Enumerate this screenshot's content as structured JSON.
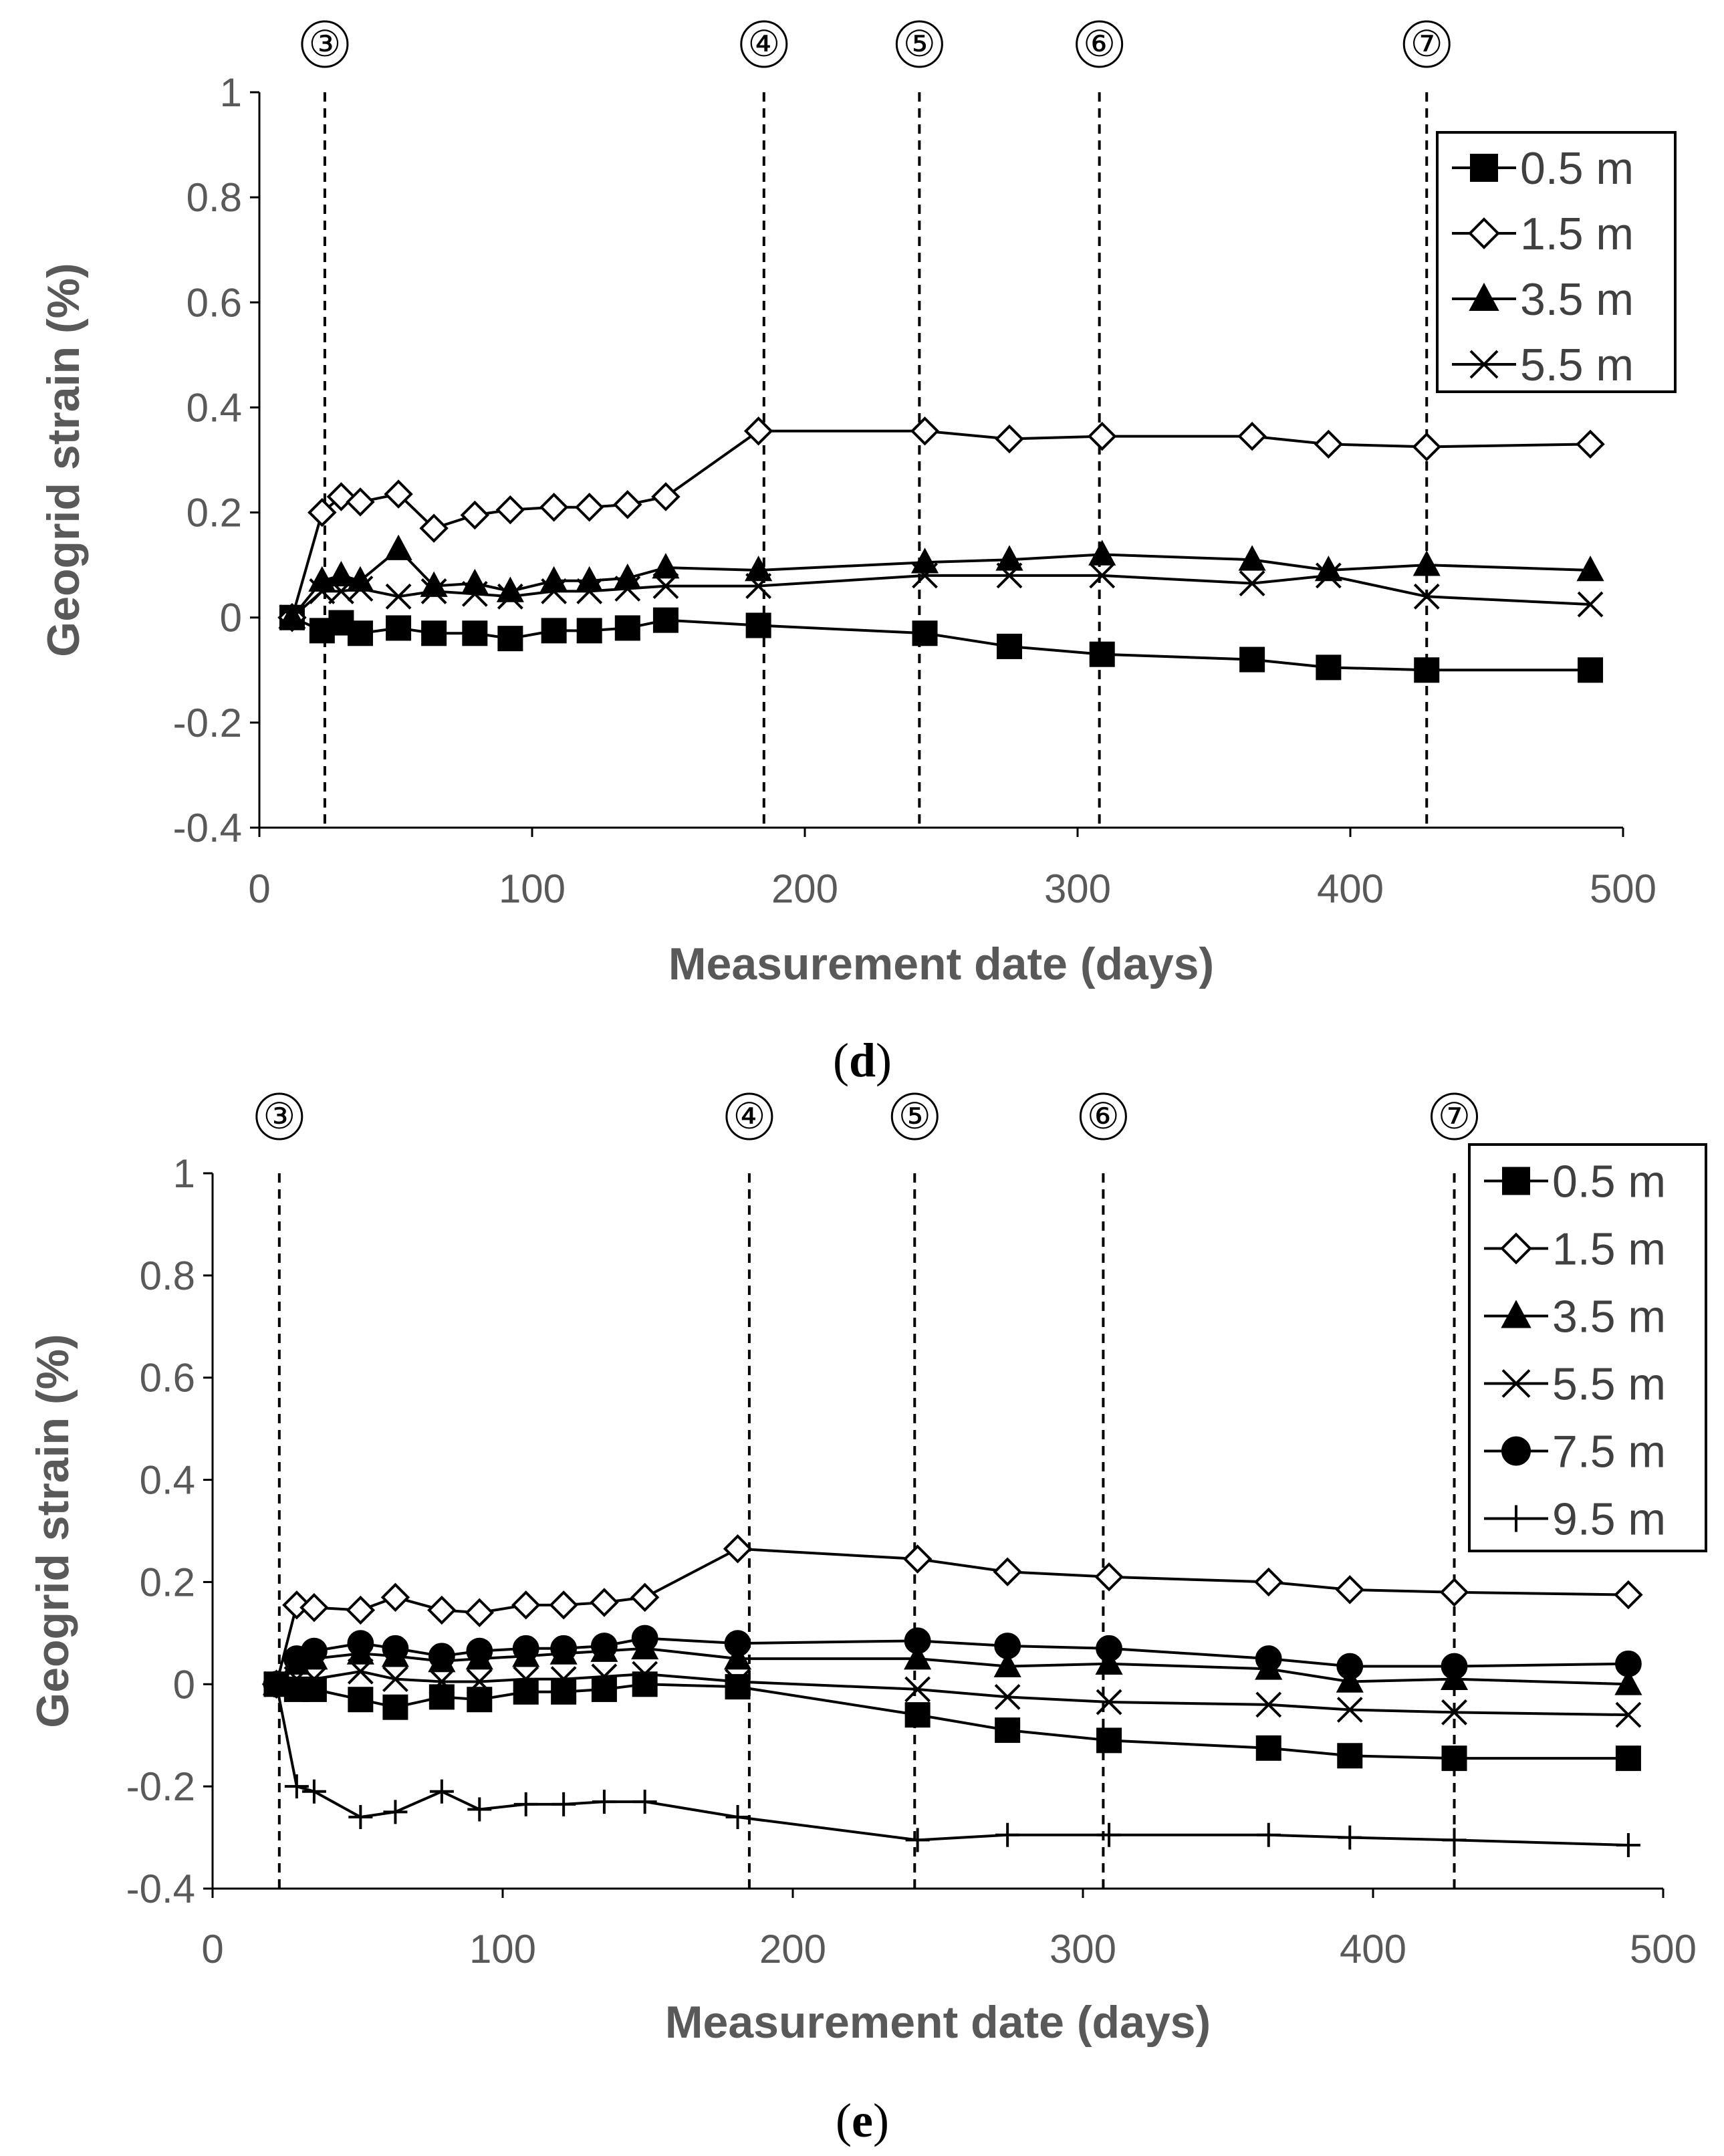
{
  "chart_data": [
    {
      "id": "d",
      "type": "line",
      "caption": {
        "open": "(",
        "letter": "d",
        "close": ")"
      },
      "xlabel": "Measurement date (days)",
      "ylabel": "Geogrid strain (%)",
      "xlim": [
        0,
        500
      ],
      "ylim": [
        -0.4,
        1
      ],
      "xticks": [
        "0",
        "100",
        "200",
        "300",
        "400",
        "500"
      ],
      "yticks": [
        "1",
        "0.8",
        "0.6",
        "0.4",
        "0.2",
        "0",
        "-0.2",
        "-0.4"
      ],
      "xtick_values": [
        0,
        100,
        200,
        300,
        400,
        500
      ],
      "ytick_values": [
        1,
        0.8,
        0.6,
        0.4,
        0.2,
        0,
        -0.2,
        -0.4
      ],
      "stages": [
        {
          "label": "③",
          "x": 24
        },
        {
          "label": "④",
          "x": 185
        },
        {
          "label": "⑤",
          "x": 242
        },
        {
          "label": "⑥",
          "x": 308
        },
        {
          "label": "⑦",
          "x": 428
        }
      ],
      "legend_position": "top-right",
      "series": [
        {
          "name": "0.5 m",
          "marker": "square",
          "x": [
            12,
            23,
            30,
            37,
            51,
            64,
            79,
            92,
            108,
            121,
            135,
            149,
            183,
            244,
            275,
            309,
            364,
            392,
            428,
            488
          ],
          "y": [
            0,
            -0.025,
            -0.01,
            -0.03,
            -0.02,
            -0.03,
            -0.03,
            -0.04,
            -0.025,
            -0.025,
            -0.02,
            -0.005,
            -0.015,
            -0.03,
            -0.055,
            -0.07,
            -0.08,
            -0.095,
            -0.1,
            -0.1
          ]
        },
        {
          "name": "1.5 m",
          "marker": "diamond",
          "x": [
            12,
            23,
            30,
            37,
            51,
            64,
            79,
            92,
            108,
            121,
            135,
            149,
            183,
            244,
            275,
            309,
            364,
            392,
            428,
            488
          ],
          "y": [
            0,
            0.2,
            0.23,
            0.22,
            0.235,
            0.17,
            0.195,
            0.205,
            0.21,
            0.21,
            0.215,
            0.23,
            0.355,
            0.355,
            0.34,
            0.345,
            0.345,
            0.33,
            0.325,
            0.33
          ]
        },
        {
          "name": "3.5 m",
          "marker": "triangle",
          "x": [
            12,
            23,
            30,
            37,
            51,
            64,
            79,
            92,
            108,
            121,
            135,
            149,
            183,
            244,
            275,
            309,
            364,
            392,
            428,
            488
          ],
          "y": [
            0,
            0.07,
            0.08,
            0.07,
            0.13,
            0.06,
            0.065,
            0.05,
            0.07,
            0.07,
            0.075,
            0.095,
            0.09,
            0.105,
            0.11,
            0.12,
            0.11,
            0.09,
            0.1,
            0.09
          ]
        },
        {
          "name": "5.5 m",
          "marker": "x",
          "x": [
            12,
            23,
            30,
            37,
            51,
            64,
            79,
            92,
            108,
            121,
            135,
            149,
            183,
            244,
            275,
            309,
            364,
            392,
            428,
            488
          ],
          "y": [
            0,
            0.05,
            0.05,
            0.055,
            0.04,
            0.05,
            0.045,
            0.04,
            0.05,
            0.05,
            0.055,
            0.06,
            0.06,
            0.08,
            0.08,
            0.08,
            0.065,
            0.08,
            0.04,
            0.025
          ]
        }
      ]
    },
    {
      "id": "e",
      "type": "line",
      "caption": {
        "open": "(",
        "letter": "e",
        "close": ")"
      },
      "xlabel": "Measurement date (days)",
      "ylabel": "Geogrid strain (%)",
      "xlim": [
        0,
        500
      ],
      "ylim": [
        -0.4,
        1
      ],
      "xticks": [
        "0",
        "100",
        "200",
        "300",
        "400",
        "500"
      ],
      "yticks": [
        "1",
        "0.8",
        "0.6",
        "0.4",
        "0.2",
        "0",
        "-0.2",
        "-0.4"
      ],
      "xtick_values": [
        0,
        100,
        200,
        300,
        400,
        500
      ],
      "ytick_values": [
        1,
        0.8,
        0.6,
        0.4,
        0.2,
        0,
        -0.2,
        -0.4
      ],
      "stages": [
        {
          "label": "③",
          "x": 23
        },
        {
          "label": "④",
          "x": 185
        },
        {
          "label": "⑤",
          "x": 242
        },
        {
          "label": "⑥",
          "x": 307
        },
        {
          "label": "⑦",
          "x": 428
        }
      ],
      "legend_position": "top-right",
      "series": [
        {
          "name": "0.5 m",
          "marker": "square",
          "x": [
            22,
            29,
            35,
            51,
            63,
            79,
            92,
            108,
            121,
            135,
            149,
            181,
            243,
            274,
            309,
            364,
            392,
            428,
            488
          ],
          "y": [
            0,
            -0.01,
            -0.01,
            -0.03,
            -0.045,
            -0.025,
            -0.03,
            -0.015,
            -0.015,
            -0.01,
            0,
            -0.005,
            -0.06,
            -0.09,
            -0.11,
            -0.125,
            -0.14,
            -0.145,
            -0.145
          ]
        },
        {
          "name": "1.5 m",
          "marker": "diamond",
          "x": [
            22,
            29,
            35,
            51,
            63,
            79,
            92,
            108,
            121,
            135,
            149,
            181,
            243,
            274,
            309,
            364,
            392,
            428,
            488
          ],
          "y": [
            0,
            0.155,
            0.15,
            0.145,
            0.17,
            0.145,
            0.14,
            0.155,
            0.155,
            0.16,
            0.17,
            0.265,
            0.245,
            0.22,
            0.21,
            0.2,
            0.185,
            0.18,
            0.175
          ]
        },
        {
          "name": "3.5 m",
          "marker": "triangle",
          "x": [
            22,
            29,
            35,
            51,
            63,
            79,
            92,
            108,
            121,
            135,
            149,
            181,
            243,
            274,
            309,
            364,
            392,
            428,
            488
          ],
          "y": [
            0,
            0.04,
            0.05,
            0.06,
            0.055,
            0.045,
            0.05,
            0.055,
            0.06,
            0.065,
            0.07,
            0.05,
            0.05,
            0.035,
            0.04,
            0.03,
            0.005,
            0.01,
            0
          ]
        },
        {
          "name": "5.5 m",
          "marker": "x",
          "x": [
            22,
            29,
            35,
            51,
            63,
            79,
            92,
            108,
            121,
            135,
            149,
            181,
            243,
            274,
            309,
            364,
            392,
            428,
            488
          ],
          "y": [
            0,
            0.01,
            0.01,
            0.025,
            0.01,
            0.005,
            0.005,
            0.01,
            0.01,
            0.015,
            0.02,
            0.005,
            -0.01,
            -0.025,
            -0.035,
            -0.04,
            -0.05,
            -0.055,
            -0.06
          ]
        },
        {
          "name": "7.5 m",
          "marker": "circle",
          "x": [
            22,
            29,
            35,
            51,
            63,
            79,
            92,
            108,
            121,
            135,
            149,
            181,
            243,
            274,
            309,
            364,
            392,
            428,
            488
          ],
          "y": [
            0,
            0.05,
            0.065,
            0.08,
            0.07,
            0.055,
            0.065,
            0.07,
            0.07,
            0.075,
            0.09,
            0.08,
            0.085,
            0.075,
            0.07,
            0.05,
            0.035,
            0.035,
            0.04
          ]
        },
        {
          "name": "9.5 m",
          "marker": "plus",
          "x": [
            22,
            29,
            35,
            51,
            63,
            79,
            92,
            108,
            121,
            135,
            149,
            181,
            243,
            274,
            309,
            364,
            392,
            428,
            488
          ],
          "y": [
            0,
            -0.2,
            -0.21,
            -0.26,
            -0.25,
            -0.21,
            -0.245,
            -0.235,
            -0.235,
            -0.23,
            -0.23,
            -0.26,
            -0.305,
            -0.295,
            -0.295,
            -0.295,
            -0.3,
            -0.305,
            -0.315
          ]
        }
      ]
    }
  ]
}
